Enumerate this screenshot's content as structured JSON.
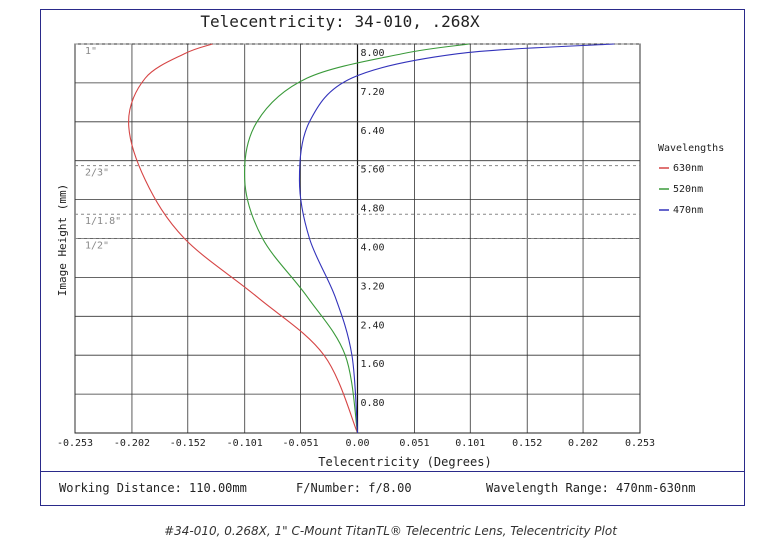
{
  "chart_data": {
    "type": "line",
    "title": "Telecentricity: 34-010, .268X",
    "xlabel": "Telecentricity (Degrees)",
    "ylabel": "Image Height (mm)",
    "xlim": [
      -0.253,
      0.253
    ],
    "ylim": [
      0,
      8.0
    ],
    "x_ticks": [
      "-0.253",
      "-0.202",
      "-0.152",
      "-0.101",
      "-0.051",
      "0.00",
      "0.051",
      "0.101",
      "0.152",
      "0.202",
      "0.253"
    ],
    "y_ticks": [
      "0.80",
      "1.60",
      "2.40",
      "3.20",
      "4.00",
      "4.80",
      "5.60",
      "6.40",
      "7.20",
      "8.00"
    ],
    "grid": true,
    "legend_title": "Wavelengths",
    "legend_position": "right",
    "sensor_markers": [
      {
        "label": "1\"",
        "y": 8.0
      },
      {
        "label": "2/3\"",
        "y": 5.5
      },
      {
        "label": "1/1.8\"",
        "y": 4.5
      },
      {
        "label": "1/2\"",
        "y": 4.0
      }
    ],
    "series": [
      {
        "name": "630nm",
        "color": "#d64545",
        "points": [
          [
            0,
            0
          ],
          [
            -0.03,
            1.6
          ],
          [
            -0.09,
            2.8
          ],
          [
            -0.155,
            4.0
          ],
          [
            -0.19,
            5.2
          ],
          [
            -0.205,
            6.4
          ],
          [
            -0.19,
            7.3
          ],
          [
            -0.155,
            7.8
          ],
          [
            -0.13,
            8.0
          ]
        ]
      },
      {
        "name": "520nm",
        "color": "#3a9a3a",
        "points": [
          [
            0,
            0
          ],
          [
            -0.011,
            1.6
          ],
          [
            -0.045,
            2.8
          ],
          [
            -0.085,
            4.0
          ],
          [
            -0.101,
            5.2
          ],
          [
            -0.09,
            6.4
          ],
          [
            -0.045,
            7.3
          ],
          [
            0.04,
            7.8
          ],
          [
            0.1,
            8.0
          ]
        ]
      },
      {
        "name": "470nm",
        "color": "#3333bb",
        "points": [
          [
            0,
            0
          ],
          [
            -0.005,
            1.6
          ],
          [
            -0.02,
            2.8
          ],
          [
            -0.043,
            4.0
          ],
          [
            -0.052,
            5.2
          ],
          [
            -0.043,
            6.4
          ],
          [
            -0.005,
            7.3
          ],
          [
            0.09,
            7.8
          ],
          [
            0.23,
            8.0
          ]
        ]
      }
    ]
  },
  "footer": {
    "working_distance": "Working Distance: 110.00mm",
    "f_number": "F/Number: f/8.00",
    "wavelength_range": "Wavelength Range: 470nm-630nm"
  },
  "caption": "#34-010, 0.268X, 1\" C-Mount TitanTL® Telecentric Lens, Telecentricity Plot"
}
